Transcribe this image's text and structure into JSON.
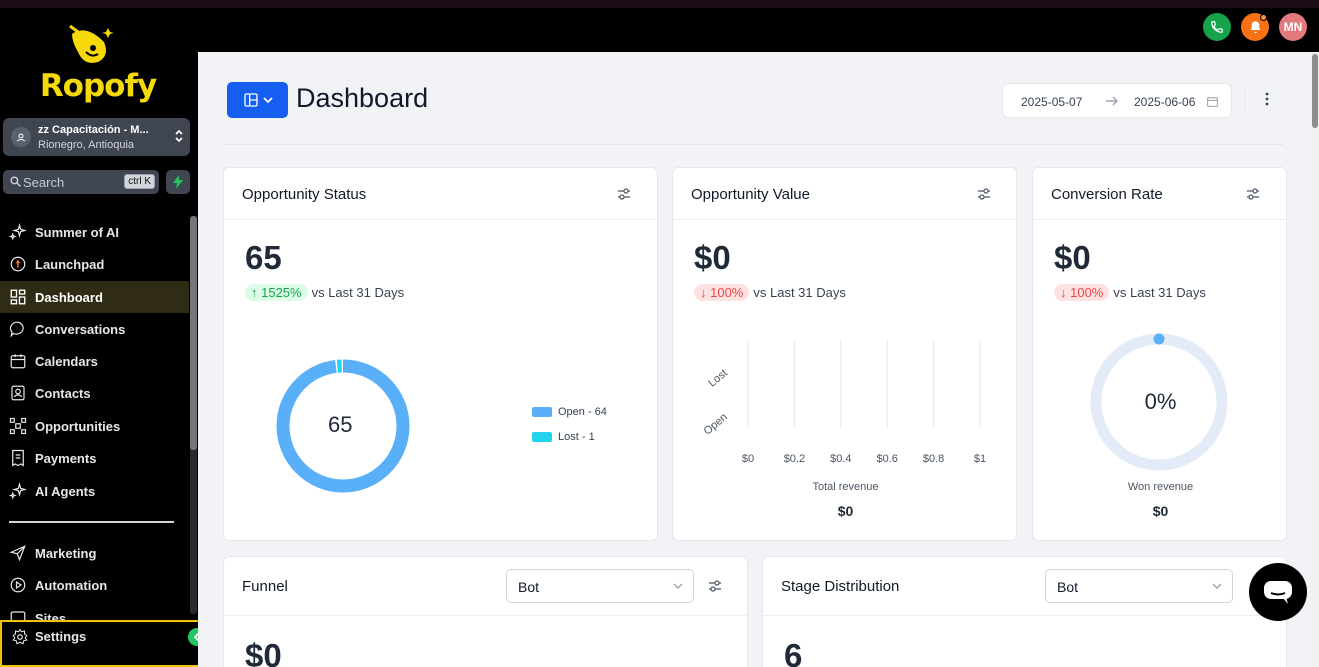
{
  "brand": {
    "logo_text": "Ropofy",
    "accent": "#f5d90a"
  },
  "topbar": {
    "avatar_initials": "MN",
    "phone_color": "#16a34a",
    "bell_color": "#f97316"
  },
  "location": {
    "name": "zz Capacitación - M...",
    "address": "Rionegro, Antioquia"
  },
  "search": {
    "placeholder": "Search",
    "shortcut": "ctrl K"
  },
  "nav": {
    "items": [
      {
        "label": "Summer of AI",
        "icon": "sparkles-icon"
      },
      {
        "label": "Launchpad",
        "icon": "rocket-icon"
      },
      {
        "label": "Dashboard",
        "icon": "grid-icon",
        "active": true
      },
      {
        "label": "Conversations",
        "icon": "chat-bubble-icon"
      },
      {
        "label": "Calendars",
        "icon": "calendar-icon"
      },
      {
        "label": "Contacts",
        "icon": "contacts-icon"
      },
      {
        "label": "Opportunities",
        "icon": "network-icon"
      },
      {
        "label": "Payments",
        "icon": "receipt-icon"
      },
      {
        "label": "AI Agents",
        "icon": "sparkles-icon"
      }
    ],
    "secondary": [
      {
        "label": "Marketing",
        "icon": "send-icon"
      },
      {
        "label": "Automation",
        "icon": "play-circle-icon"
      },
      {
        "label": "Sites",
        "icon": "browser-icon"
      }
    ],
    "settings_label": "Settings"
  },
  "header": {
    "title": "Dashboard",
    "date_start": "2025-05-07",
    "date_end": "2025-06-06"
  },
  "cards": {
    "opportunity_status": {
      "title": "Opportunity Status",
      "value": "65",
      "change": "↑ 1525%",
      "comparison": "vs Last 31 Days",
      "donut_center": "65",
      "legend": [
        {
          "label": "Open - 64",
          "color": "#5ab0f8"
        },
        {
          "label": "Lost - 1",
          "color": "#22d3ee"
        }
      ]
    },
    "opportunity_value": {
      "title": "Opportunity Value",
      "value": "$0",
      "change": "↓ 100%",
      "comparison": "vs Last 31 Days",
      "stat_label": "Total revenue",
      "stat_value": "$0"
    },
    "conversion_rate": {
      "title": "Conversion Rate",
      "value": "$0",
      "change": "↓ 100%",
      "comparison": "vs Last 31 Days",
      "gauge_label": "0%",
      "stat_label": "Won revenue",
      "stat_value": "$0"
    },
    "funnel": {
      "title": "Funnel",
      "select_value": "Bot",
      "value": "$0"
    },
    "stage_distribution": {
      "title": "Stage Distribution",
      "select_value": "Bot",
      "value": "6"
    }
  },
  "chart_data": [
    {
      "type": "pie",
      "categories": [
        "Open",
        "Lost"
      ],
      "values": [
        64,
        1
      ],
      "colors": [
        "#5ab0f8",
        "#22d3ee"
      ],
      "donut": true
    },
    {
      "type": "bar",
      "orientation": "horizontal",
      "categories": [
        "Lost",
        "Open"
      ],
      "values": [
        0,
        0
      ],
      "xlabel": "",
      "xlim": [
        0,
        1
      ],
      "x_ticks": [
        "$0",
        "$0.2",
        "$0.4",
        "$0.6",
        "$0.8",
        "$1"
      ]
    }
  ]
}
